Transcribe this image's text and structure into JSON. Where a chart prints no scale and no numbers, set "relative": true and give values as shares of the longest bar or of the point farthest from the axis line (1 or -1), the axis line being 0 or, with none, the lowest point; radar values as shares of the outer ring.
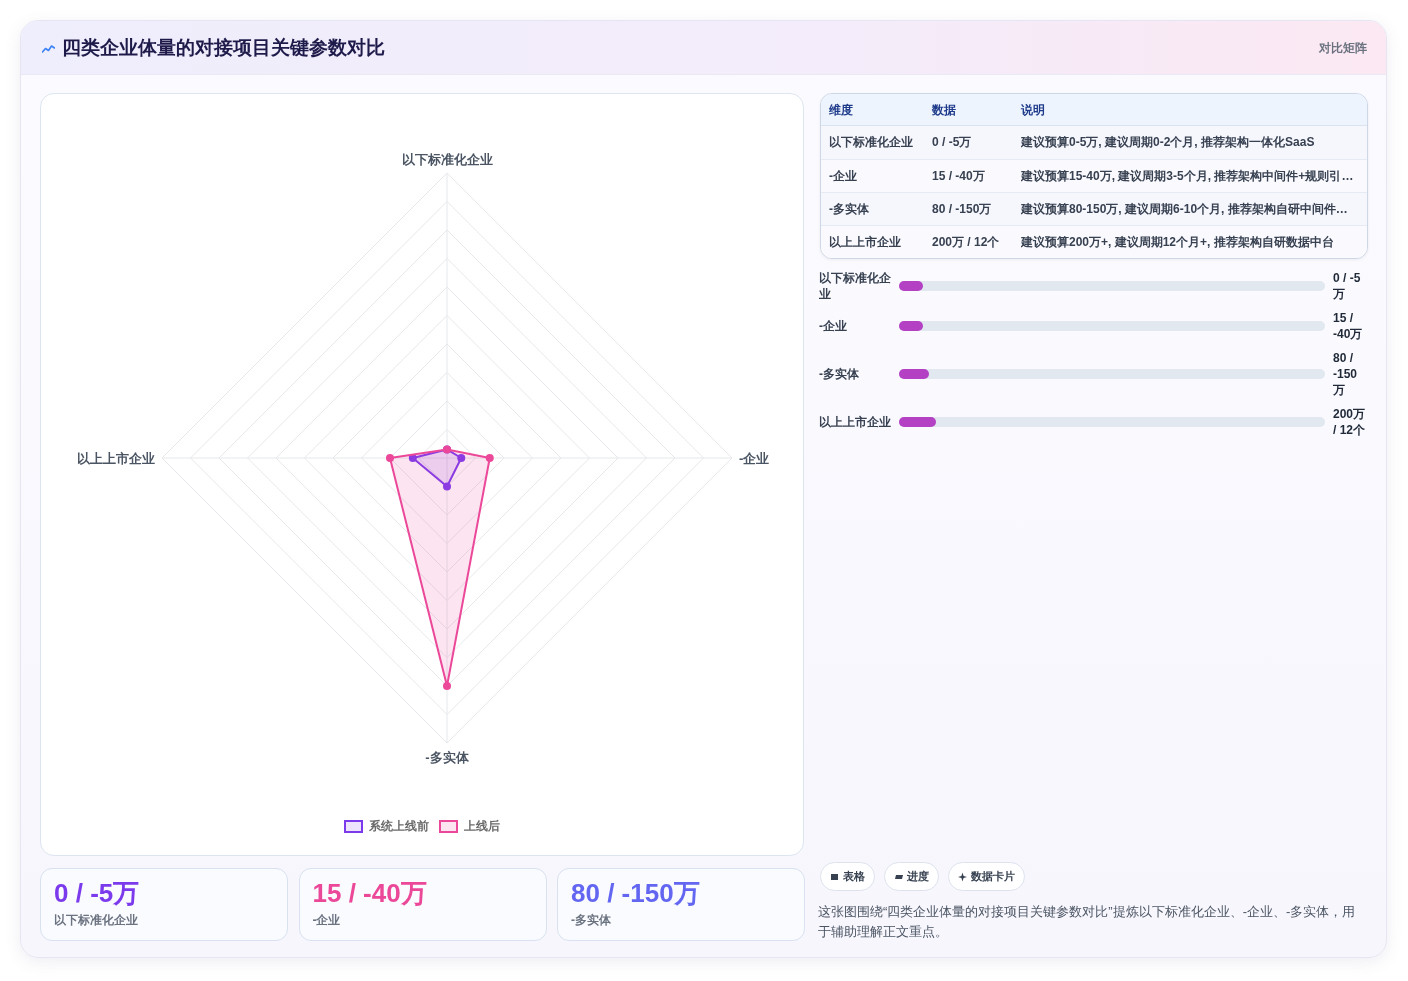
{
  "chart_data": [
    {
      "type": "other",
      "title": "四类企业体量的对接项目关键参数对比",
      "subtitle": "对比矩阵"
    },
    {
      "type": "radar",
      "categories": [
        "以下标准化企业",
        "-企业",
        "-多实体",
        "以上上市企业"
      ],
      "relative": true,
      "grid": true,
      "legend": "bottom",
      "marker": "circle",
      "series": [
        {
          "name": "系统上线前",
          "color": "#7c3aed",
          "values": [
            0.03,
            0.05,
            0.1,
            0.12
          ]
        },
        {
          "name": "上线后",
          "color": "#ec4899",
          "values": [
            0.03,
            0.15,
            0.8,
            0.2
          ]
        }
      ]
    },
    {
      "type": "other",
      "categories": [
        "维度",
        "数据",
        "说明"
      ],
      "cell_labels": [
        [
          "以下标准化企业",
          "0 / -5万",
          "建议预算0-5万, 建议周期0-2个月, 推荐架构一体化SaaS"
        ],
        [
          "-企业",
          "15 / -40万",
          "建议预算15-40万, 建议周期3-5个月, 推荐架构中间件+规则引…"
        ],
        [
          "-多实体",
          "80 / -150万",
          "建议预算80-150万, 建议周期6-10个月, 推荐架构自研中间件…"
        ],
        [
          "以上上市企业",
          "200万 / 12个",
          "建议预算200万+, 建议周期12个月+, 推荐架构自研数据中台"
        ]
      ]
    },
    {
      "type": "bar",
      "orientation": "horizontal",
      "relative": true,
      "categories": [
        "以下标准化企业",
        "-企业",
        "-多实体",
        "以上上市企业"
      ],
      "y2_categories": [
        "0 / -5万",
        "15 / -40万",
        "80 / -150万",
        "200万 / 12个"
      ],
      "values": [
        0.65,
        0.65,
        0.82,
        1
      ],
      "color": "#b441c3"
    },
    {
      "type": "other",
      "categories": [
        "以下标准化企业",
        "-企业",
        "-多实体"
      ],
      "value_labels": [
        "0 / -5万",
        "15 / -40万",
        "80 / -150万"
      ]
    },
    {
      "type": "other",
      "categories": [
        "表格",
        "进度",
        "数据卡片"
      ],
      "annotations": [
        "这张图围绕“四类企业体量的对接项目关键参数对比”提炼以下标准化企业、-企业、-多实体，用于辅助理解正文重点。"
      ]
    }
  ]
}
